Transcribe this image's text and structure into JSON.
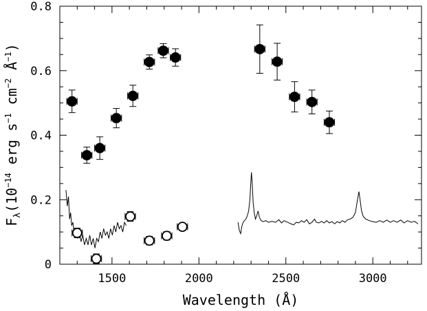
{
  "chart_data": {
    "type": "scatter",
    "xlabel": "Wavelength (Å)",
    "ylabel": "F",
    "ylabel_sub": "λ",
    "ylabel_rest": "(10",
    "ylabel_exp1": "−14",
    "ylabel_mid": " erg s",
    "ylabel_exp2": "−1",
    "ylabel_mid2": " cm",
    "ylabel_exp3": "−2",
    "ylabel_mid3": " Å",
    "ylabel_exp4": "−1",
    "ylabel_end": ")",
    "xlim": [
      1200,
      3280
    ],
    "ylim": [
      0,
      0.8
    ],
    "xticks": [
      1500,
      2000,
      2500,
      3000
    ],
    "xtick_labels": [
      "1500",
      "2000",
      "2500",
      "3000"
    ],
    "yticks": [
      0,
      0.2,
      0.4,
      0.6,
      0.8
    ],
    "ytick_labels": [
      "0",
      "0.2",
      "0.4",
      "0.6",
      "0.8"
    ],
    "series": [
      {
        "marker": "filled-circle",
        "points": [
          {
            "x": 1270,
            "y": 0.505,
            "xerr": 30,
            "yerr": 0.035
          },
          {
            "x": 1355,
            "y": 0.338,
            "xerr": 30,
            "yerr": 0.025
          },
          {
            "x": 1430,
            "y": 0.36,
            "xerr": 30,
            "yerr": 0.035
          },
          {
            "x": 1525,
            "y": 0.453,
            "xerr": 30,
            "yerr": 0.03
          },
          {
            "x": 1620,
            "y": 0.522,
            "xerr": 30,
            "yerr": 0.033
          },
          {
            "x": 1715,
            "y": 0.627,
            "xerr": 30,
            "yerr": 0.022
          },
          {
            "x": 1795,
            "y": 0.662,
            "xerr": 30,
            "yerr": 0.022
          },
          {
            "x": 1865,
            "y": 0.641,
            "xerr": 30,
            "yerr": 0.027
          },
          {
            "x": 2350,
            "y": 0.667,
            "xerr": 30,
            "yerr": 0.075
          },
          {
            "x": 2450,
            "y": 0.628,
            "xerr": 30,
            "yerr": 0.057
          },
          {
            "x": 2550,
            "y": 0.519,
            "xerr": 30,
            "yerr": 0.047
          },
          {
            "x": 2650,
            "y": 0.503,
            "xerr": 30,
            "yerr": 0.037
          },
          {
            "x": 2750,
            "y": 0.44,
            "xerr": 30,
            "yerr": 0.035
          }
        ]
      },
      {
        "marker": "open-circle",
        "points": [
          {
            "x": 1300,
            "y": 0.097,
            "xerr": 30,
            "yerr": 0.015
          },
          {
            "x": 1410,
            "y": 0.017,
            "xerr": 30,
            "yerr": 0.015
          },
          {
            "x": 1605,
            "y": 0.148,
            "xerr": 30,
            "yerr": 0.015
          },
          {
            "x": 1715,
            "y": 0.073,
            "xerr": 30,
            "yerr": 0.013
          },
          {
            "x": 1815,
            "y": 0.088,
            "xerr": 30,
            "yerr": 0.013
          },
          {
            "x": 1905,
            "y": 0.116,
            "xerr": 30,
            "yerr": 0.01
          }
        ]
      },
      {
        "marker": "line",
        "segments": [
          [
            [
              1235,
              0.23
            ],
            [
              1243,
              0.18
            ],
            [
              1250,
              0.21
            ],
            [
              1256,
              0.14
            ],
            [
              1262,
              0.16
            ],
            [
              1268,
              0.12
            ],
            [
              1275,
              0.13
            ],
            [
              1283,
              0.09
            ],
            [
              1292,
              0.11
            ],
            [
              1302,
              0.08
            ],
            [
              1312,
              0.1
            ],
            [
              1322,
              0.07
            ],
            [
              1332,
              0.09
            ],
            [
              1342,
              0.06
            ],
            [
              1352,
              0.08
            ],
            [
              1362,
              0.06
            ],
            [
              1372,
              0.09
            ],
            [
              1382,
              0.06
            ],
            [
              1392,
              0.08
            ],
            [
              1402,
              0.05
            ],
            [
              1412,
              0.08
            ],
            [
              1422,
              0.07
            ],
            [
              1432,
              0.1
            ],
            [
              1442,
              0.08
            ],
            [
              1452,
              0.11
            ],
            [
              1462,
              0.09
            ],
            [
              1472,
              0.1
            ],
            [
              1482,
              0.08
            ],
            [
              1492,
              0.11
            ],
            [
              1502,
              0.09
            ],
            [
              1512,
              0.12
            ],
            [
              1522,
              0.1
            ],
            [
              1532,
              0.13
            ],
            [
              1542,
              0.11
            ],
            [
              1552,
              0.12
            ],
            [
              1562,
              0.1
            ],
            [
              1572,
              0.13
            ],
            [
              1582,
              0.12
            ]
          ],
          [
            [
              2225,
              0.13
            ],
            [
              2232,
              0.105
            ],
            [
              2240,
              0.095
            ],
            [
              2247,
              0.118
            ],
            [
              2254,
              0.13
            ],
            [
              2262,
              0.135
            ],
            [
              2270,
              0.14
            ],
            [
              2278,
              0.15
            ],
            [
              2286,
              0.165
            ],
            [
              2293,
              0.2
            ],
            [
              2298,
              0.25
            ],
            [
              2302,
              0.285
            ],
            [
              2306,
              0.255
            ],
            [
              2312,
              0.19
            ],
            [
              2318,
              0.16
            ],
            [
              2325,
              0.14
            ],
            [
              2332,
              0.15
            ],
            [
              2340,
              0.165
            ],
            [
              2348,
              0.145
            ],
            [
              2358,
              0.135
            ],
            [
              2370,
              0.132
            ],
            [
              2385,
              0.135
            ],
            [
              2400,
              0.13
            ],
            [
              2420,
              0.133
            ],
            [
              2440,
              0.13
            ],
            [
              2460,
              0.138
            ],
            [
              2475,
              0.128
            ],
            [
              2490,
              0.135
            ],
            [
              2510,
              0.13
            ],
            [
              2530,
              0.125
            ],
            [
              2545,
              0.122
            ],
            [
              2560,
              0.13
            ],
            [
              2575,
              0.128
            ],
            [
              2590,
              0.135
            ],
            [
              2605,
              0.13
            ],
            [
              2620,
              0.138
            ],
            [
              2635,
              0.125
            ],
            [
              2650,
              0.13
            ],
            [
              2665,
              0.14
            ],
            [
              2675,
              0.13
            ],
            [
              2690,
              0.128
            ],
            [
              2705,
              0.133
            ],
            [
              2720,
              0.128
            ],
            [
              2735,
              0.135
            ],
            [
              2750,
              0.128
            ],
            [
              2765,
              0.132
            ],
            [
              2780,
              0.125
            ],
            [
              2795,
              0.132
            ],
            [
              2810,
              0.128
            ],
            [
              2825,
              0.135
            ],
            [
              2840,
              0.13
            ],
            [
              2855,
              0.138
            ],
            [
              2870,
              0.14
            ],
            [
              2885,
              0.145
            ],
            [
              2900,
              0.16
            ],
            [
              2912,
              0.2
            ],
            [
              2920,
              0.225
            ],
            [
              2927,
              0.2
            ],
            [
              2935,
              0.165
            ],
            [
              2945,
              0.148
            ],
            [
              2960,
              0.14
            ],
            [
              2980,
              0.135
            ],
            [
              3000,
              0.132
            ],
            [
              3020,
              0.13
            ],
            [
              3040,
              0.135
            ],
            [
              3060,
              0.13
            ],
            [
              3080,
              0.137
            ],
            [
              3100,
              0.13
            ],
            [
              3120,
              0.135
            ],
            [
              3140,
              0.13
            ],
            [
              3160,
              0.137
            ],
            [
              3180,
              0.128
            ],
            [
              3200,
              0.135
            ],
            [
              3220,
              0.13
            ],
            [
              3240,
              0.133
            ],
            [
              3260,
              0.125
            ]
          ]
        ]
      }
    ]
  }
}
